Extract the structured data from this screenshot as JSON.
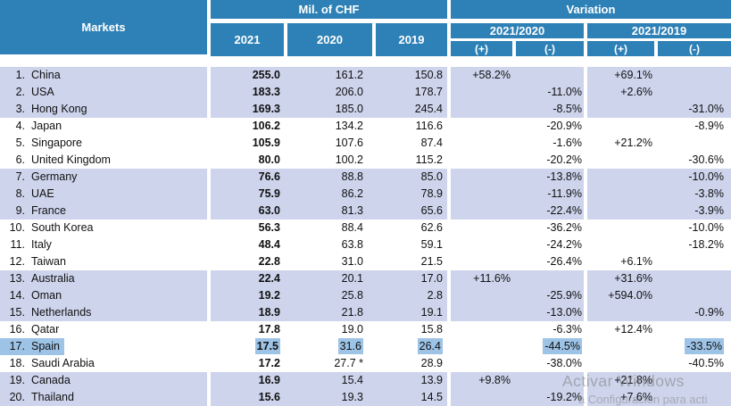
{
  "table": {
    "header": {
      "markets": "Markets",
      "chf_group": "Mil. of CHF",
      "variation_group": "Variation",
      "years": [
        "2021",
        "2020",
        "2019"
      ],
      "variation_pairs": [
        "2021/2020",
        "2021/2019"
      ],
      "plus": "(+)",
      "minus": "(-)"
    },
    "rows": [
      {
        "rank": "1.",
        "market": "China",
        "y2021": "255.0",
        "y2020": "161.2",
        "y2019": "150.8",
        "v2020_plus": "+58.2%",
        "v2020_minus": "",
        "v2019_plus": "+69.1%",
        "v2019_minus": "",
        "band": "shaded",
        "highlighted": false
      },
      {
        "rank": "2.",
        "market": "USA",
        "y2021": "183.3",
        "y2020": "206.0",
        "y2019": "178.7",
        "v2020_plus": "",
        "v2020_minus": "-11.0%",
        "v2019_plus": "+2.6%",
        "v2019_minus": "",
        "band": "shaded",
        "highlighted": false
      },
      {
        "rank": "3.",
        "market": "Hong Kong",
        "y2021": "169.3",
        "y2020": "185.0",
        "y2019": "245.4",
        "v2020_plus": "",
        "v2020_minus": "-8.5%",
        "v2019_plus": "",
        "v2019_minus": "-31.0%",
        "band": "shaded",
        "highlighted": false
      },
      {
        "rank": "4.",
        "market": "Japan",
        "y2021": "106.2",
        "y2020": "134.2",
        "y2019": "116.6",
        "v2020_plus": "",
        "v2020_minus": "-20.9%",
        "v2019_plus": "",
        "v2019_minus": "-8.9%",
        "band": "plain",
        "highlighted": false
      },
      {
        "rank": "5.",
        "market": "Singapore",
        "y2021": "105.9",
        "y2020": "107.6",
        "y2019": "87.4",
        "v2020_plus": "",
        "v2020_minus": "-1.6%",
        "v2019_plus": "+21.2%",
        "v2019_minus": "",
        "band": "plain",
        "highlighted": false
      },
      {
        "rank": "6.",
        "market": "United Kingdom",
        "y2021": "80.0",
        "y2020": "100.2",
        "y2019": "115.2",
        "v2020_plus": "",
        "v2020_minus": "-20.2%",
        "v2019_plus": "",
        "v2019_minus": "-30.6%",
        "band": "plain",
        "highlighted": false
      },
      {
        "rank": "7.",
        "market": "Germany",
        "y2021": "76.6",
        "y2020": "88.8",
        "y2019": "85.0",
        "v2020_plus": "",
        "v2020_minus": "-13.8%",
        "v2019_plus": "",
        "v2019_minus": "-10.0%",
        "band": "shaded",
        "highlighted": false
      },
      {
        "rank": "8.",
        "market": "UAE",
        "y2021": "75.9",
        "y2020": "86.2",
        "y2019": "78.9",
        "v2020_plus": "",
        "v2020_minus": "-11.9%",
        "v2019_plus": "",
        "v2019_minus": "-3.8%",
        "band": "shaded",
        "highlighted": false
      },
      {
        "rank": "9.",
        "market": "France",
        "y2021": "63.0",
        "y2020": "81.3",
        "y2019": "65.6",
        "v2020_plus": "",
        "v2020_minus": "-22.4%",
        "v2019_plus": "",
        "v2019_minus": "-3.9%",
        "band": "shaded",
        "highlighted": false
      },
      {
        "rank": "10.",
        "market": "South Korea",
        "y2021": "56.3",
        "y2020": "88.4",
        "y2019": "62.6",
        "v2020_plus": "",
        "v2020_minus": "-36.2%",
        "v2019_plus": "",
        "v2019_minus": "-10.0%",
        "band": "plain",
        "highlighted": false
      },
      {
        "rank": "11.",
        "market": "Italy",
        "y2021": "48.4",
        "y2020": "63.8",
        "y2019": "59.1",
        "v2020_plus": "",
        "v2020_minus": "-24.2%",
        "v2019_plus": "",
        "v2019_minus": "-18.2%",
        "band": "plain",
        "highlighted": false
      },
      {
        "rank": "12.",
        "market": "Taiwan",
        "y2021": "22.8",
        "y2020": "31.0",
        "y2019": "21.5",
        "v2020_plus": "",
        "v2020_minus": "-26.4%",
        "v2019_plus": "+6.1%",
        "v2019_minus": "",
        "band": "plain",
        "highlighted": false
      },
      {
        "rank": "13.",
        "market": "Australia",
        "y2021": "22.4",
        "y2020": "20.1",
        "y2019": "17.0",
        "v2020_plus": "+11.6%",
        "v2020_minus": "",
        "v2019_plus": "+31.6%",
        "v2019_minus": "",
        "band": "shaded",
        "highlighted": false
      },
      {
        "rank": "14.",
        "market": "Oman",
        "y2021": "19.2",
        "y2020": "25.8",
        "y2019": "2.8",
        "v2020_plus": "",
        "v2020_minus": "-25.9%",
        "v2019_plus": "+594.0%",
        "v2019_minus": "",
        "band": "shaded",
        "highlighted": false
      },
      {
        "rank": "15.",
        "market": "Netherlands",
        "y2021": "18.9",
        "y2020": "21.8",
        "y2019": "19.1",
        "v2020_plus": "",
        "v2020_minus": "-13.0%",
        "v2019_plus": "",
        "v2019_minus": "-0.9%",
        "band": "shaded",
        "highlighted": false
      },
      {
        "rank": "16.",
        "market": "Qatar",
        "y2021": "17.8",
        "y2020": "19.0",
        "y2019": "15.8",
        "v2020_plus": "",
        "v2020_minus": "-6.3%",
        "v2019_plus": "+12.4%",
        "v2019_minus": "",
        "band": "plain",
        "highlighted": false
      },
      {
        "rank": "17.",
        "market": "Spain",
        "y2021": "17.5",
        "y2020": "31.6",
        "y2019": "26.4",
        "v2020_plus": "",
        "v2020_minus": "-44.5%",
        "v2019_plus": "",
        "v2019_minus": "-33.5%",
        "band": "plain",
        "highlighted": true
      },
      {
        "rank": "18.",
        "market": "Saudi Arabia",
        "y2021": "17.2",
        "y2020": "27.7 *",
        "y2019": "28.9",
        "v2020_plus": "",
        "v2020_minus": "-38.0%",
        "v2019_plus": "",
        "v2019_minus": "-40.5%",
        "band": "plain",
        "highlighted": false
      },
      {
        "rank": "19.",
        "market": "Canada",
        "y2021": "16.9",
        "y2020": "15.4",
        "y2019": "13.9",
        "v2020_plus": "+9.8%",
        "v2020_minus": "",
        "v2019_plus": "+21.8%",
        "v2019_minus": "",
        "band": "shaded",
        "highlighted": false
      },
      {
        "rank": "20.",
        "market": "Thailand",
        "y2021": "15.6",
        "y2020": "19.3",
        "y2019": "14.5",
        "v2020_plus": "",
        "v2020_minus": "-19.2%",
        "v2019_plus": "+7.6%",
        "v2019_minus": "",
        "band": "shaded",
        "highlighted": false
      }
    ]
  },
  "colors": {
    "header_blue": "#2E81B6",
    "band_lavender": "#CDD4EC",
    "highlight_blue": "#9DC3E6",
    "watermark_gray": "#A6A6A6"
  },
  "watermark": {
    "line1": "Activar Windows",
    "line2": "a Configuración para acti"
  }
}
